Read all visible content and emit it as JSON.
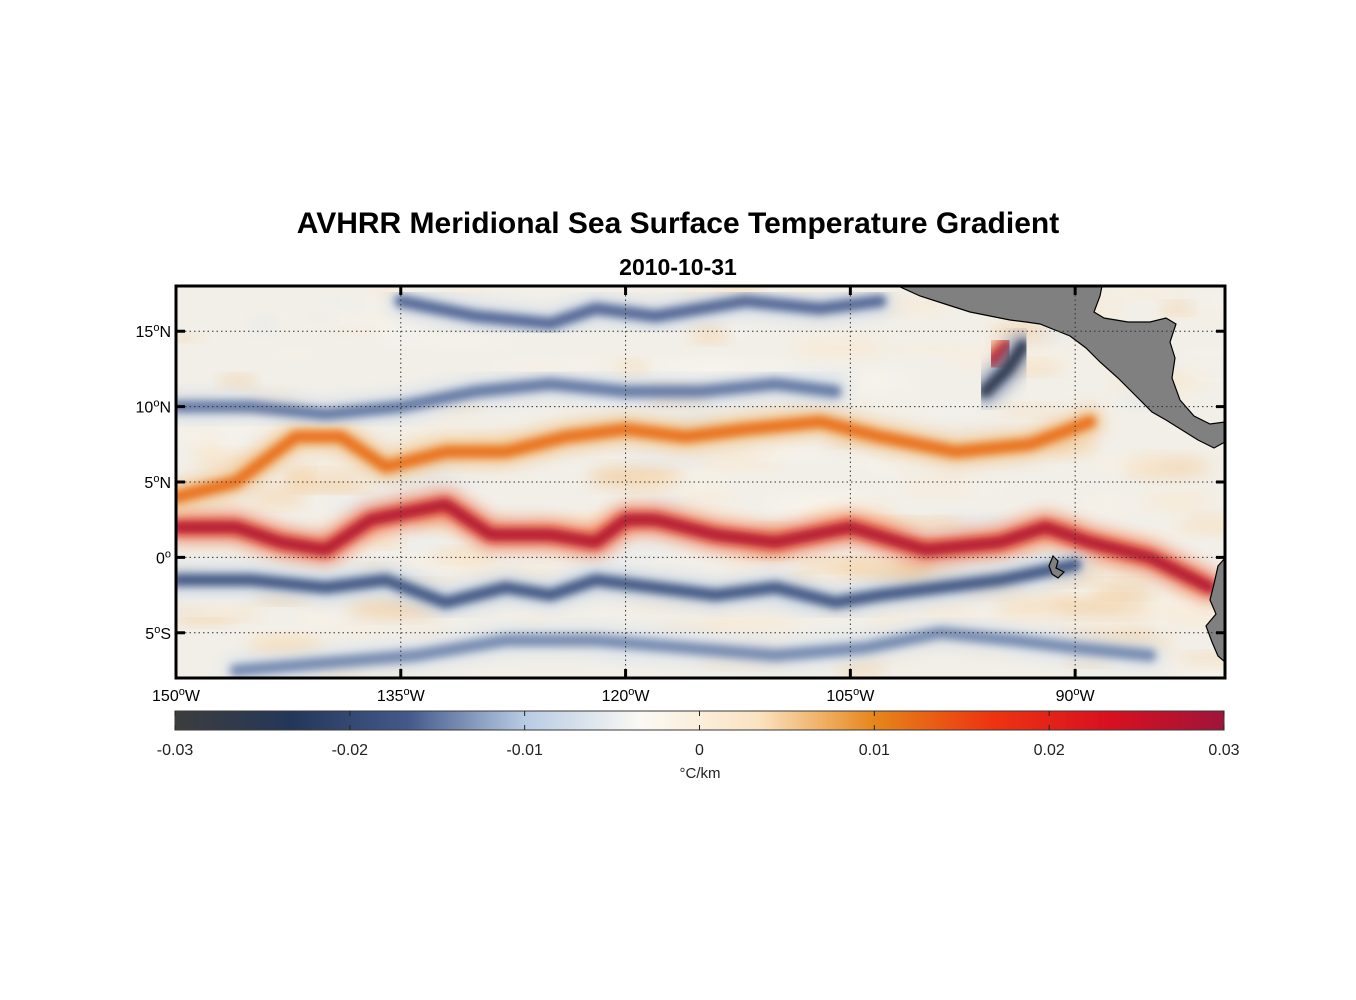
{
  "title": "AVHRR Meridional Sea Surface Temperature Gradient",
  "date": "2010-10-31",
  "chart_data": {
    "type": "heatmap",
    "title": "AVHRR Meridional Sea Surface Temperature Gradient",
    "subtitle": "2010-10-31",
    "lon_range": [
      -150,
      -80
    ],
    "lat_range": [
      -8,
      18
    ],
    "x_ticks": [
      {
        "value": -150,
        "num": "150",
        "hemi": "W"
      },
      {
        "value": -135,
        "num": "135",
        "hemi": "W"
      },
      {
        "value": -120,
        "num": "120",
        "hemi": "W"
      },
      {
        "value": -105,
        "num": "105",
        "hemi": "W"
      },
      {
        "value": -90,
        "num": "90",
        "hemi": "W"
      }
    ],
    "y_ticks": [
      {
        "value": 15,
        "num": "15",
        "hemi": "N"
      },
      {
        "value": 10,
        "num": "10",
        "hemi": "N"
      },
      {
        "value": 5,
        "num": "5",
        "hemi": "N"
      },
      {
        "value": 0,
        "num": "0",
        "hemi": ""
      },
      {
        "value": -5,
        "num": "5",
        "hemi": "S"
      }
    ],
    "grid": true,
    "colorbar": {
      "min": -0.03,
      "max": 0.03,
      "ticks": [
        {
          "value": -0.03,
          "label": "-0.03"
        },
        {
          "value": -0.02,
          "label": "-0.02"
        },
        {
          "value": -0.01,
          "label": "-0.01"
        },
        {
          "value": 0,
          "label": "0"
        },
        {
          "value": 0.01,
          "label": "0.01"
        },
        {
          "value": 0.02,
          "label": "0.02"
        },
        {
          "value": 0.03,
          "label": "0.03"
        }
      ],
      "label": "°C/km",
      "colors": [
        "#3d3d3d",
        "#24375a",
        "#44598a",
        "#b8cbe4",
        "#fbf9f4",
        "#fbe3c2",
        "#e6861a",
        "#ee3410",
        "#d91020",
        "#a0143a"
      ]
    },
    "land_color": "#808080",
    "features": [
      {
        "name": "equatorial-warm-front",
        "sign": "positive",
        "peak_value": 0.028,
        "path": [
          [
            -150,
            2
          ],
          [
            -146,
            2
          ],
          [
            -143,
            1
          ],
          [
            -140,
            0.5
          ],
          [
            -137,
            2.5
          ],
          [
            -132,
            3.5
          ],
          [
            -129,
            1.5
          ],
          [
            -125,
            1.5
          ],
          [
            -122,
            1
          ],
          [
            -120,
            2.5
          ],
          [
            -118,
            2.5
          ],
          [
            -114,
            1.5
          ],
          [
            -110,
            1
          ],
          [
            -105,
            2
          ],
          [
            -100,
            0.5
          ],
          [
            -95,
            1
          ],
          [
            -92,
            2
          ],
          [
            -89,
            1
          ],
          [
            -85,
            0
          ],
          [
            -81,
            -2
          ]
        ]
      },
      {
        "name": "cold-front-south-of-equator",
        "sign": "negative",
        "peak_value": -0.018,
        "path": [
          [
            -150,
            -1.5
          ],
          [
            -145,
            -1.5
          ],
          [
            -140,
            -2
          ],
          [
            -136,
            -1.5
          ],
          [
            -132,
            -3
          ],
          [
            -128,
            -2
          ],
          [
            -125,
            -2.5
          ],
          [
            -122,
            -1.5
          ],
          [
            -118,
            -2
          ],
          [
            -114,
            -2.5
          ],
          [
            -110,
            -2
          ],
          [
            -106,
            -3
          ],
          [
            -103,
            -2.5
          ],
          [
            -99,
            -2
          ],
          [
            -95,
            -1.5
          ],
          [
            -90,
            -0.5
          ]
        ]
      },
      {
        "name": "northern-warm-band",
        "sign": "positive",
        "peak_value": 0.012,
        "path": [
          [
            -150,
            4
          ],
          [
            -146,
            5
          ],
          [
            -142,
            8
          ],
          [
            -139,
            8
          ],
          [
            -136,
            6
          ],
          [
            -132,
            7
          ],
          [
            -128,
            7
          ],
          [
            -124,
            8
          ],
          [
            -120,
            8.5
          ],
          [
            -116,
            8
          ],
          [
            -112,
            8.5
          ],
          [
            -107,
            9
          ],
          [
            -103,
            8
          ],
          [
            -98,
            7
          ],
          [
            -93,
            7.5
          ],
          [
            -89,
            9
          ]
        ]
      },
      {
        "name": "warm-eddy-gulf-of-tehuantepec",
        "sign": "positive",
        "peak_value": 0.026,
        "path": [
          [
            -95.5,
            13
          ],
          [
            -94.5,
            14
          ]
        ]
      },
      {
        "name": "cold-eddy-gulf-of-tehuantepec",
        "sign": "negative",
        "peak_value": -0.026,
        "path": [
          [
            -96,
            11
          ],
          [
            -94.5,
            12.5
          ],
          [
            -93.5,
            14
          ]
        ]
      },
      {
        "name": "cold-band-north",
        "sign": "negative",
        "peak_value": -0.015,
        "path": [
          [
            -150,
            10
          ],
          [
            -145,
            10
          ],
          [
            -140,
            9.5
          ],
          [
            -135,
            10
          ],
          [
            -130,
            11
          ],
          [
            -125,
            11.5
          ],
          [
            -120,
            11
          ],
          [
            -115,
            11
          ],
          [
            -110,
            11.5
          ],
          [
            -106,
            11
          ]
        ]
      },
      {
        "name": "cold-band-top",
        "sign": "negative",
        "peak_value": -0.016,
        "path": [
          [
            -135,
            17
          ],
          [
            -130,
            16
          ],
          [
            -125,
            15.5
          ],
          [
            -122,
            16.5
          ],
          [
            -118,
            16
          ],
          [
            -112,
            17
          ],
          [
            -107,
            16.5
          ],
          [
            -103,
            17
          ]
        ]
      },
      {
        "name": "cold-band-far-south",
        "sign": "negative",
        "peak_value": -0.014,
        "path": [
          [
            -146,
            -7.5
          ],
          [
            -140,
            -7
          ],
          [
            -134,
            -6.5
          ],
          [
            -128,
            -5.5
          ],
          [
            -122,
            -5.5
          ],
          [
            -116,
            -6
          ],
          [
            -110,
            -6.5
          ],
          [
            -104,
            -6
          ],
          [
            -99,
            -5
          ],
          [
            -94,
            -5.5
          ],
          [
            -90,
            -6
          ],
          [
            -85,
            -6.5
          ]
        ]
      }
    ]
  }
}
